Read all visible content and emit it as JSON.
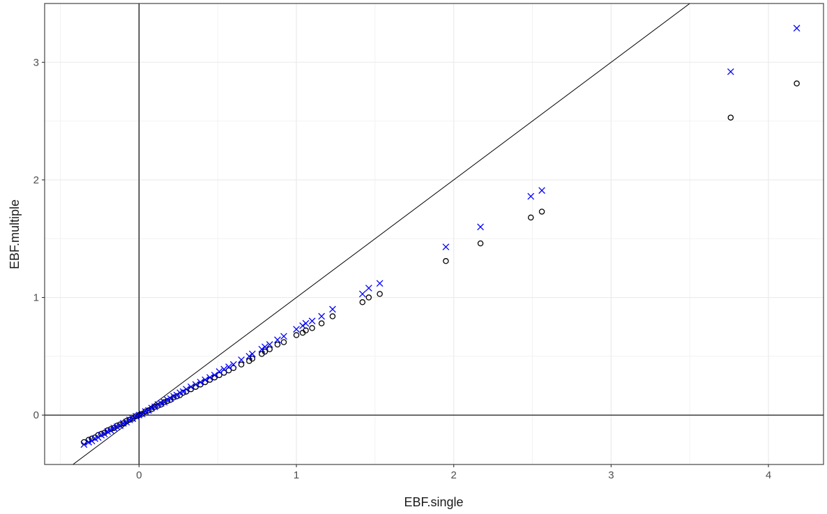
{
  "chart_data": {
    "type": "scatter",
    "title": "",
    "xlabel": "EBF.single",
    "ylabel": "EBF.multiple",
    "xlim": [
      -0.6,
      4.35
    ],
    "ylim": [
      -0.42,
      3.5
    ],
    "x_ticks": [
      0,
      1,
      2,
      3,
      4
    ],
    "y_ticks": [
      0,
      1,
      2,
      3
    ],
    "grid": true,
    "legend": "none",
    "reference_lines": {
      "vertical_x": 0,
      "horizontal_y": 0,
      "diagonal": "y = x"
    },
    "colors": {
      "circles": "#000000",
      "crosses": "#0000ff",
      "lines": "#000000",
      "grid": "#ebebeb"
    },
    "x": [
      -0.35,
      -0.32,
      -0.3,
      -0.28,
      -0.26,
      -0.24,
      -0.22,
      -0.2,
      -0.18,
      -0.16,
      -0.14,
      -0.12,
      -0.1,
      -0.08,
      -0.06,
      -0.04,
      -0.02,
      0.0,
      0.02,
      0.04,
      0.06,
      0.08,
      0.1,
      0.12,
      0.14,
      0.16,
      0.18,
      0.2,
      0.22,
      0.24,
      0.26,
      0.28,
      0.3,
      0.33,
      0.36,
      0.39,
      0.42,
      0.45,
      0.48,
      0.51,
      0.54,
      0.57,
      0.6,
      0.65,
      0.7,
      0.72,
      0.78,
      0.8,
      0.83,
      0.88,
      0.92,
      1.0,
      1.04,
      1.06,
      1.1,
      1.16,
      1.23,
      1.42,
      1.46,
      1.53,
      1.95,
      2.17,
      2.49,
      2.56,
      3.76,
      4.18
    ],
    "series": [
      {
        "marker": "circle",
        "values": [
          -0.23,
          -0.21,
          -0.2,
          -0.19,
          -0.17,
          -0.16,
          -0.15,
          -0.13,
          -0.12,
          -0.11,
          -0.09,
          -0.08,
          -0.07,
          -0.05,
          -0.04,
          -0.03,
          -0.01,
          0.0,
          0.01,
          0.03,
          0.04,
          0.05,
          0.07,
          0.08,
          0.09,
          0.11,
          0.12,
          0.13,
          0.15,
          0.16,
          0.17,
          0.19,
          0.2,
          0.22,
          0.24,
          0.26,
          0.28,
          0.3,
          0.32,
          0.34,
          0.36,
          0.38,
          0.4,
          0.43,
          0.46,
          0.48,
          0.52,
          0.54,
          0.56,
          0.6,
          0.62,
          0.68,
          0.7,
          0.72,
          0.74,
          0.78,
          0.84,
          0.96,
          1.0,
          1.03,
          1.31,
          1.46,
          1.68,
          1.73,
          2.53,
          2.82
        ]
      },
      {
        "marker": "cross",
        "values": [
          -0.25,
          -0.23,
          -0.22,
          -0.2,
          -0.19,
          -0.17,
          -0.16,
          -0.14,
          -0.13,
          -0.11,
          -0.1,
          -0.09,
          -0.07,
          -0.06,
          -0.04,
          -0.03,
          -0.01,
          0.0,
          0.01,
          0.03,
          0.04,
          0.06,
          0.07,
          0.09,
          0.1,
          0.11,
          0.13,
          0.14,
          0.16,
          0.17,
          0.19,
          0.2,
          0.22,
          0.24,
          0.26,
          0.28,
          0.3,
          0.32,
          0.34,
          0.37,
          0.39,
          0.41,
          0.43,
          0.47,
          0.5,
          0.52,
          0.56,
          0.58,
          0.6,
          0.64,
          0.67,
          0.73,
          0.76,
          0.78,
          0.8,
          0.84,
          0.9,
          1.03,
          1.08,
          1.12,
          1.43,
          1.6,
          1.86,
          1.91,
          2.92,
          3.29
        ]
      }
    ]
  }
}
